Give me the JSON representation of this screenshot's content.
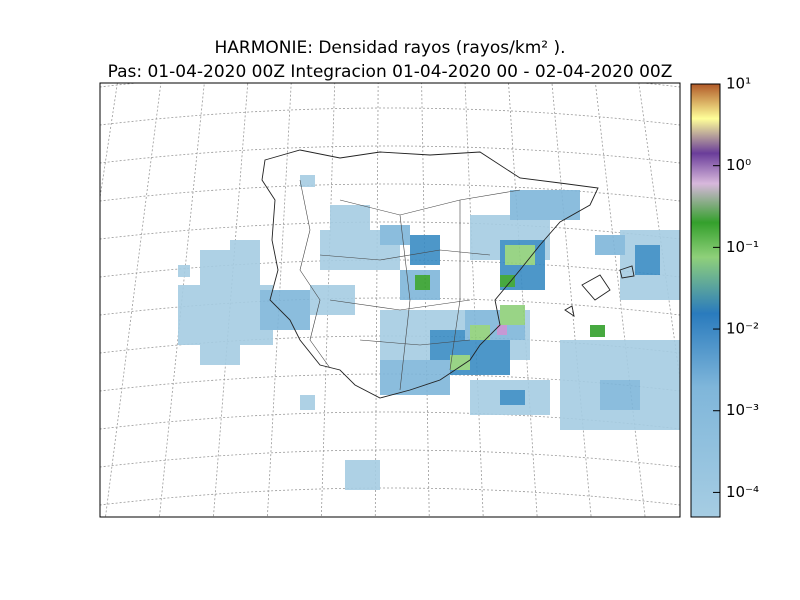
{
  "chart_data": {
    "type": "map",
    "title": "HARMONIE: Densidad rayos  (rayos/km² ).",
    "subtitle": "Pas: 01-04-2020 00Z Integracion 01-04-2020 00 - 02-04-2020 00Z",
    "colorbar": {
      "scale": "log",
      "clim": [
        5e-05,
        10
      ],
      "ticks": [
        {
          "value": 0.0001,
          "label": "10⁻⁴"
        },
        {
          "value": 0.001,
          "label": "10⁻³"
        },
        {
          "value": 0.01,
          "label": "10⁻²"
        },
        {
          "value": 0.1,
          "label": "10⁻¹"
        },
        {
          "value": 1,
          "label": "10⁰"
        },
        {
          "value": 10,
          "label": "10¹"
        }
      ]
    }
  }
}
